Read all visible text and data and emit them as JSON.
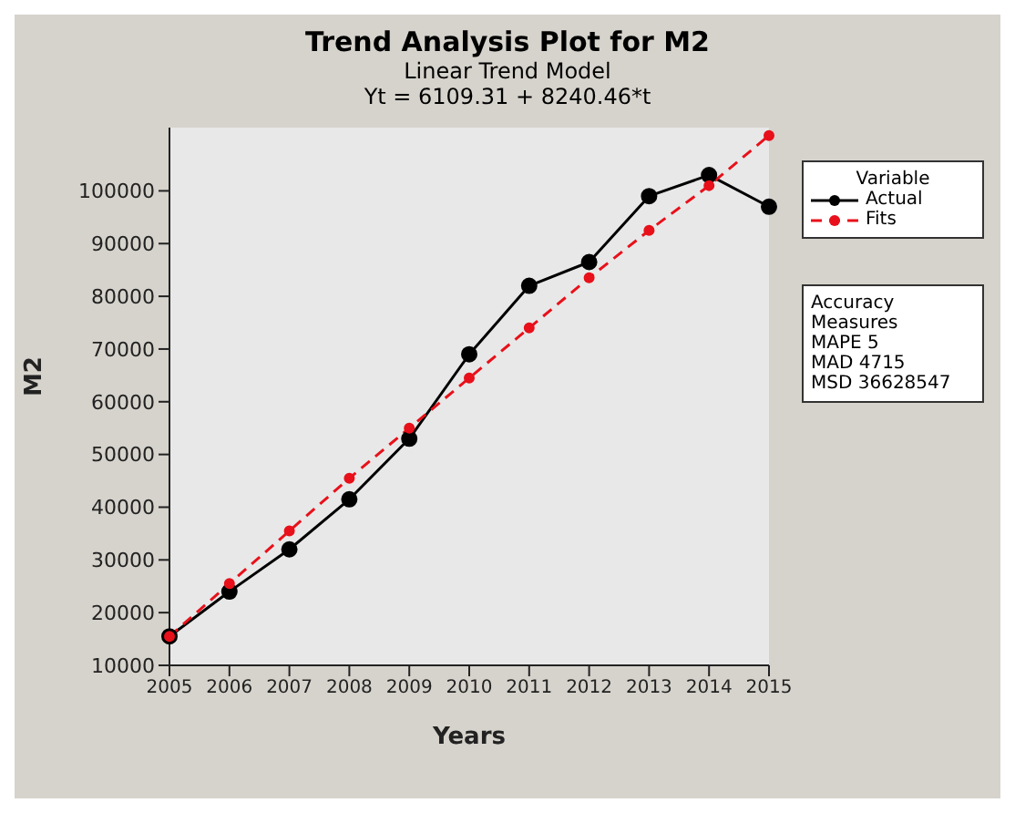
{
  "chart_data": {
    "type": "line",
    "title": "Trend Analysis Plot for M2",
    "subtitle": "Linear Trend Model\nYt = 6109.31 + 8240.46*t",
    "xlabel": "Years",
    "ylabel": "M2",
    "categories": [
      "2005",
      "2006",
      "2007",
      "2008",
      "2009",
      "2010",
      "2011",
      "2012",
      "2013",
      "2014",
      "2015"
    ],
    "series": [
      {
        "name": "Actual",
        "color": "#000000",
        "values": [
          15500,
          24000,
          32000,
          41500,
          53000,
          69000,
          82000,
          86500,
          99000,
          103000,
          97000
        ],
        "line_style": "solid",
        "marker": "circle"
      },
      {
        "name": "Fits",
        "color": "#e8101a",
        "values": [
          15500,
          25500,
          35500,
          45500,
          55000,
          64500,
          74000,
          83500,
          92500,
          101000,
          110500
        ],
        "line_style": "dashed",
        "marker": "circle"
      }
    ],
    "ylim": [
      10000,
      112000
    ],
    "yticks": [
      10000,
      20000,
      30000,
      40000,
      50000,
      60000,
      70000,
      80000,
      90000,
      100000
    ],
    "grid": false,
    "legend": "top right",
    "legend_title": "Variable",
    "annotations": [
      "Accuracy Measures",
      "MAPE 5",
      "MAD 4715",
      "MSD 36628547"
    ]
  }
}
